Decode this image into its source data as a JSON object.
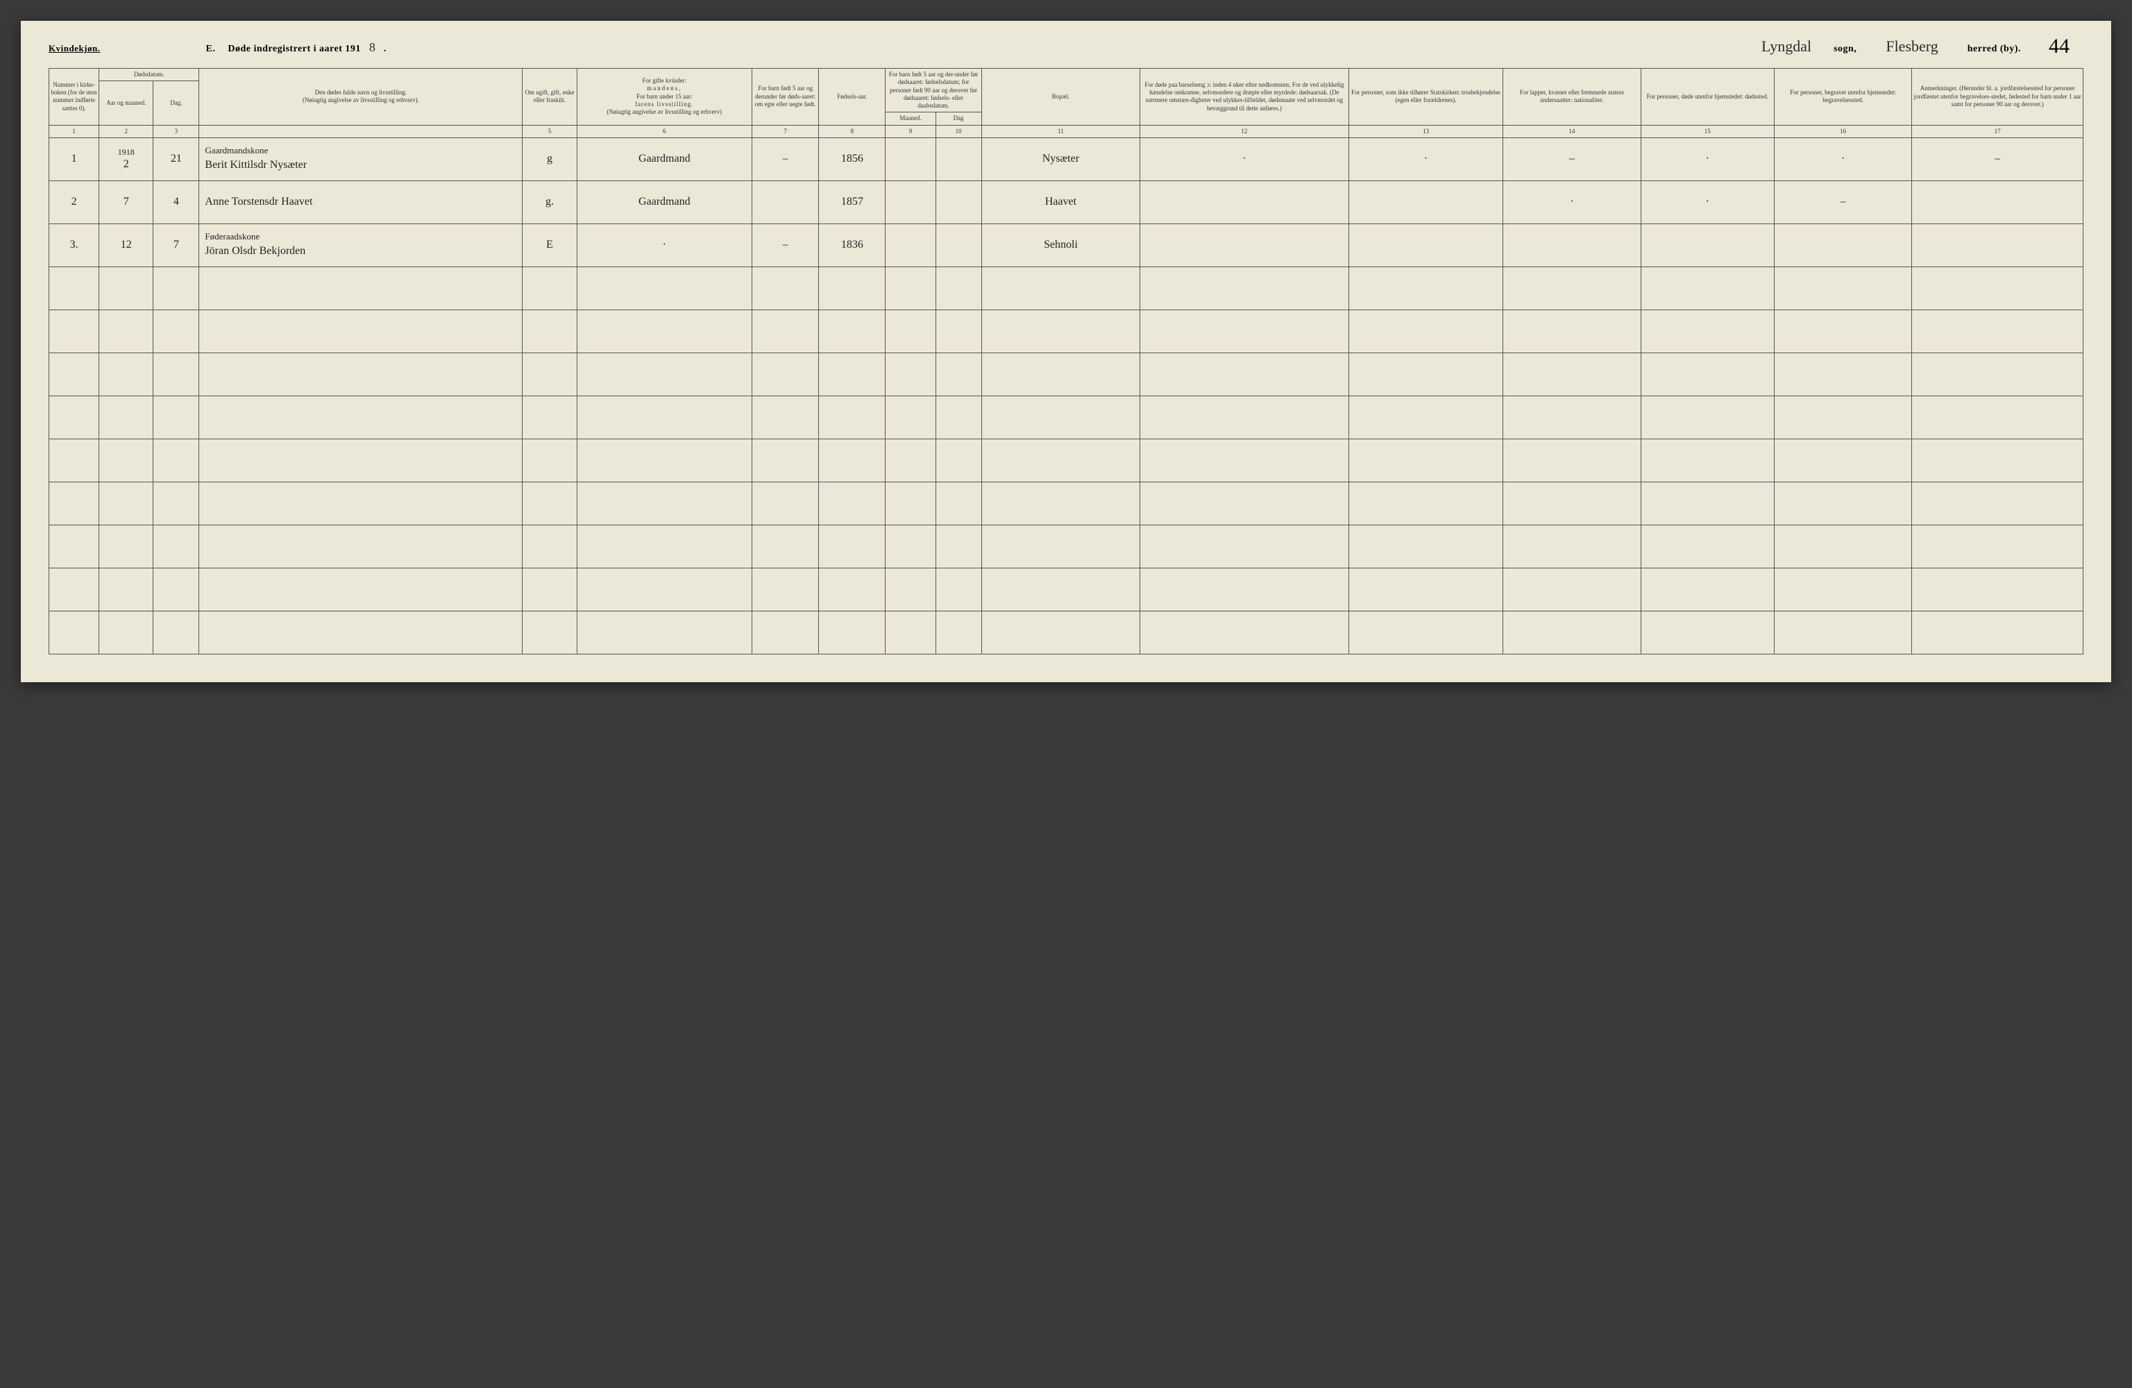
{
  "header": {
    "gender_label": "Kvindekjøn.",
    "section_letter": "E.",
    "title_prefix": "Døde indregistrert i aaret 191",
    "year_digit": "8",
    "period": ".",
    "sogn_hand": "Lyngdal",
    "sogn_label": "sogn,",
    "herred_hand": "Flesberg",
    "herred_label": "herred (by).",
    "page_number": "44"
  },
  "columns": {
    "h1": "Nummer i kirke-boken (for de uten nummer indførte sættes 0).",
    "h2_top": "Dødsdatum.",
    "h2a": "Aar og maaned.",
    "h2b": "Dag.",
    "h4a": "Den dødes fulde navn og livsstilling.",
    "h4b": "(Nøiagtig angivelse av livsstilling og erhverv).",
    "h5": "Om ugift, gift, enke eller fraskilt.",
    "h6a": "For gifte kvinder:",
    "h6b": "mandens,",
    "h6c": "For barn under 15 aar:",
    "h6d": "farens livsstilling.",
    "h6e": "(Nøiagtig angivelse av livsstilling og erhverv)",
    "h7": "For barn født 5 aar og derunder før døds-aaret: om egte eller uegte født.",
    "h8": "Fødsels-aar.",
    "h9_top": "For barn født 5 aar og der-under før dødsaaret: fødselsdatum; for personer født 90 aar og derover før dødsaaret: fødsels- eller daabsdatum.",
    "h9a": "Maaned.",
    "h9b": "Dag",
    "h11": "Bopæl.",
    "h12": "For døde paa barselseng ɔ: inden 4 uker efter nedkomsten; For de ved ulykkelig hændelse omkomne, selvmordere og dræpte eller myrdede: dødsaarsak. (De nærmere omstæn-digheter ved ulykkes-tilfældet, dødsmaate ved selvmordet og bevæggrund til dette anføres.)",
    "h13": "For personer, som ikke tilhører Statskirken: trosbekjendelse (egen eller forældrenes).",
    "h14": "For lapper, kvæner eller fremmede staters undersaatter: nationalitet.",
    "h15": "For personer, døde utenfor hjemstedet: dødssted.",
    "h16": "For personer, begravet utenfor hjemstedet: begravelsessted.",
    "h17": "Anmerkninger. (Herunder bl. a. jordfæstelsessted for personer jordfæstet utenfor begravelses-stedet, fødested for barn under 1 aar samt for personer 90 aar og derover.)"
  },
  "colnums": [
    "1",
    "2",
    "3",
    "",
    "5",
    "6",
    "7",
    "8",
    "9",
    "10",
    "11",
    "12",
    "13",
    "14",
    "15",
    "16",
    "17"
  ],
  "rows": [
    {
      "num": "1",
      "year_note": "1918",
      "month": "2",
      "day": "21",
      "occupation": "Gaardmandskone",
      "name": "Berit Kittilsdr Nysæter",
      "status": "g",
      "spouse_occ": "Gaardmand",
      "c7": "–",
      "birth_year": "1856",
      "c9": "",
      "c10": "",
      "residence": "Nysæter",
      "c12": "·",
      "c13": "·",
      "c14": "–",
      "c15": "·",
      "c16": "·",
      "c17": "–"
    },
    {
      "num": "2",
      "year_note": "",
      "month": "7",
      "day": "4",
      "occupation": "",
      "name": "Anne Torstensdr Haavet",
      "status": "g.",
      "spouse_occ": "Gaardmand",
      "c7": "",
      "birth_year": "1857",
      "c9": "",
      "c10": "",
      "residence": "Haavet",
      "c12": "",
      "c13": "",
      "c14": "·",
      "c15": "·",
      "c16": "–",
      "c17": ""
    },
    {
      "num": "3.",
      "year_note": "",
      "month": "12",
      "day": "7",
      "occupation": "Føderaadskone",
      "name": "Jöran Olsdr Bekjorden",
      "status": "E",
      "spouse_occ": "·",
      "c7": "–",
      "birth_year": "1836",
      "c9": "",
      "c10": "",
      "residence": "Sehnoli",
      "c12": "",
      "c13": "",
      "c14": "",
      "c15": "",
      "c16": "",
      "c17": ""
    }
  ],
  "empty_row_count": 9
}
